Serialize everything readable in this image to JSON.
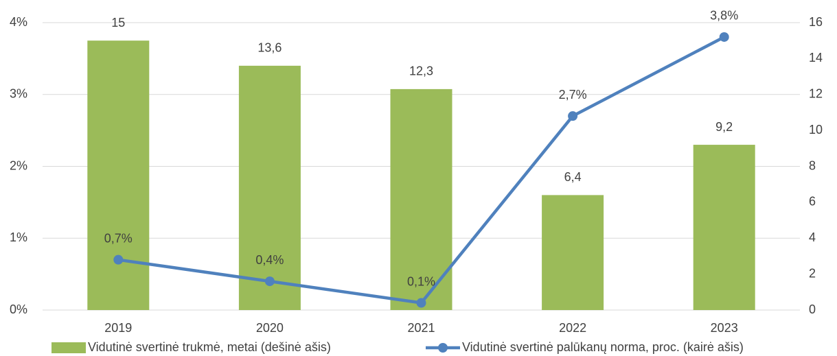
{
  "chart_data": {
    "type": "combo",
    "categories": [
      "2019",
      "2020",
      "2021",
      "2022",
      "2023"
    ],
    "series": [
      {
        "name": "Vidutinė svertinė trukmė, metai (dešinė ašis)",
        "type": "bar",
        "axis": "y2",
        "color": "#9bbb59",
        "values": [
          15,
          13.6,
          12.3,
          6.4,
          9.2
        ],
        "value_labels": [
          "15",
          "13,6",
          "12,3",
          "6,4",
          "9,2"
        ]
      },
      {
        "name": "Vidutinė svertinė palūkanų norma, proc. (kairė ašis)",
        "type": "line",
        "color": "#4f81bd",
        "values": [
          0.7,
          0.4,
          0.1,
          2.7,
          3.8
        ],
        "value_labels": [
          "0,7%",
          "0,4%",
          "0,1%",
          "2,7%",
          "3,8%"
        ]
      }
    ],
    "ylim": [
      0,
      4
    ],
    "yticks": [
      {
        "value": 0,
        "label": "0%"
      },
      {
        "value": 1,
        "label": "1%"
      },
      {
        "value": 2,
        "label": "2%"
      },
      {
        "value": 3,
        "label": "3%"
      },
      {
        "value": 4,
        "label": "4%"
      }
    ],
    "y2lim": [
      0,
      16
    ],
    "y2ticks": [
      0,
      2,
      4,
      6,
      8,
      10,
      12,
      14,
      16
    ],
    "grid": true,
    "legend": "bottom"
  }
}
